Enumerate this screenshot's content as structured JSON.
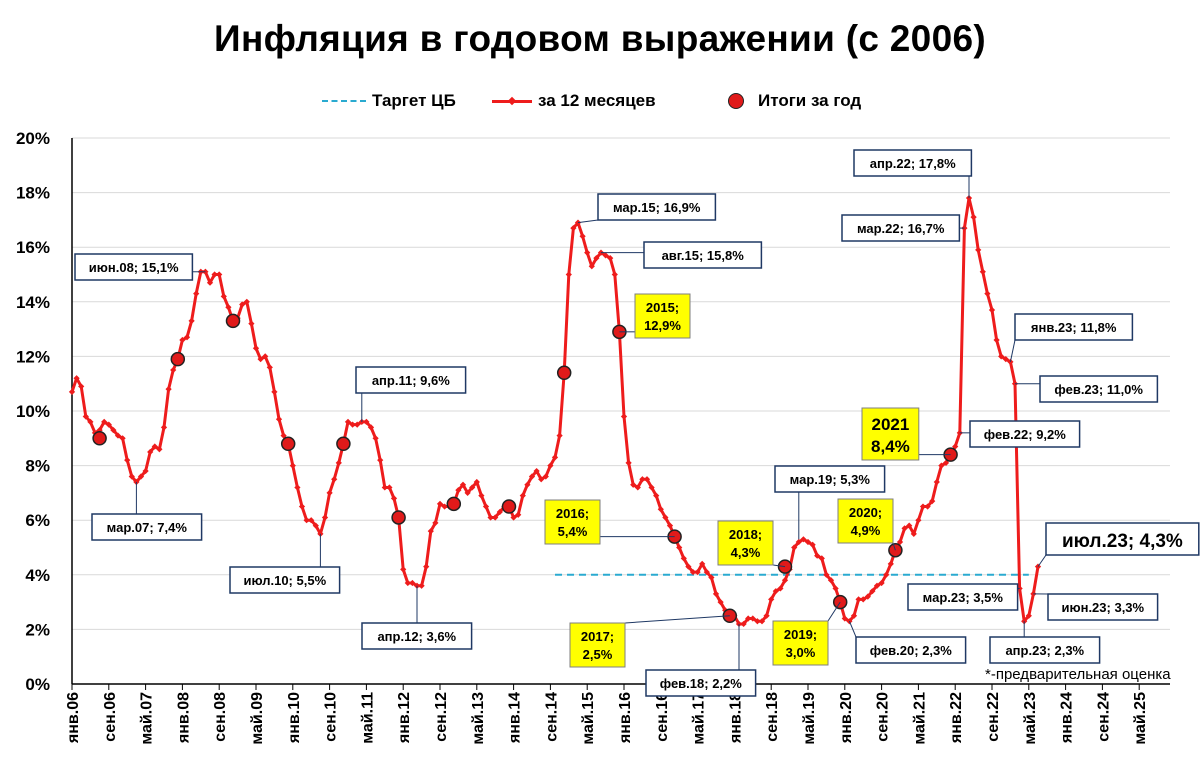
{
  "page": {
    "title": "Инфляция в годовом выражении (с 2006)",
    "note": "*-предварительная оценка"
  },
  "legend": {
    "target": "Таргет ЦБ",
    "line": "за 12 месяцев",
    "dots": "Итоги за год"
  },
  "colors": {
    "line": "#ee1c1c",
    "dot": "#e01a1a",
    "target": "#2aaad0",
    "box_border": "#1f3864",
    "year_box": "#ffff00"
  },
  "chart_data": {
    "type": "line",
    "title": "Инфляция в годовом выражении (с 2006)",
    "y_unit": "%",
    "ylim": [
      0,
      20
    ],
    "y_ticks": [
      "0%",
      "2%",
      "4%",
      "6%",
      "8%",
      "10%",
      "12%",
      "14%",
      "16%",
      "18%",
      "20%"
    ],
    "x_ticks": [
      "янв.06",
      "сен.06",
      "май.07",
      "янв.08",
      "сен.08",
      "май.09",
      "янв.10",
      "сен.10",
      "май.11",
      "янв.12",
      "сен.12",
      "май.13",
      "янв.14",
      "сен.14",
      "май.15",
      "янв.16",
      "сен.16",
      "май.17",
      "янв.18",
      "сен.18",
      "май.19",
      "янв.20",
      "сен.20",
      "май.21",
      "янв.22",
      "сен.22",
      "май.23",
      "янв.24",
      "сен.24",
      "май.25"
    ],
    "series": [
      {
        "name": "за 12 месяцев",
        "start": "янв.06",
        "values": [
          10.7,
          11.2,
          10.9,
          9.8,
          9.6,
          9.2,
          9.3,
          9.6,
          9.5,
          9.3,
          9.1,
          9.0,
          8.2,
          7.6,
          7.4,
          7.6,
          7.8,
          8.5,
          8.7,
          8.6,
          9.4,
          10.8,
          11.5,
          11.9,
          12.6,
          12.7,
          13.3,
          14.3,
          15.1,
          15.1,
          14.7,
          15.0,
          15.0,
          14.2,
          13.8,
          13.3,
          13.4,
          13.9,
          14.0,
          13.2,
          12.3,
          11.9,
          12.0,
          11.6,
          10.7,
          9.7,
          9.1,
          8.8,
          8.0,
          7.2,
          6.5,
          6.0,
          6.0,
          5.8,
          5.5,
          6.1,
          7.0,
          7.5,
          8.1,
          8.8,
          9.6,
          9.5,
          9.5,
          9.6,
          9.6,
          9.4,
          9.0,
          8.2,
          7.2,
          7.2,
          6.8,
          6.1,
          4.2,
          3.7,
          3.7,
          3.6,
          3.6,
          4.3,
          5.6,
          5.9,
          6.6,
          6.5,
          6.5,
          6.6,
          7.1,
          7.3,
          7.0,
          7.2,
          7.4,
          6.9,
          6.5,
          6.1,
          6.1,
          6.3,
          6.5,
          6.5,
          6.1,
          6.2,
          6.9,
          7.3,
          7.6,
          7.8,
          7.5,
          7.6,
          8.0,
          8.3,
          9.1,
          11.4,
          15.0,
          16.7,
          16.9,
          16.4,
          15.8,
          15.3,
          15.6,
          15.8,
          15.7,
          15.6,
          15.0,
          12.9,
          9.8,
          8.1,
          7.3,
          7.2,
          7.5,
          7.5,
          7.2,
          6.9,
          6.4,
          6.1,
          5.8,
          5.4,
          5.0,
          4.6,
          4.3,
          4.1,
          4.1,
          4.4,
          4.1,
          3.9,
          3.3,
          3.0,
          2.7,
          2.5,
          2.5,
          2.2,
          2.2,
          2.4,
          2.4,
          2.3,
          2.3,
          2.5,
          3.1,
          3.4,
          3.5,
          3.8,
          4.2,
          5.0,
          5.2,
          5.3,
          5.2,
          5.1,
          4.7,
          4.6,
          4.0,
          3.8,
          3.5,
          3.0,
          2.4,
          2.3,
          2.5,
          3.1,
          3.1,
          3.2,
          3.4,
          3.6,
          3.7,
          4.0,
          4.4,
          4.9,
          5.2,
          5.7,
          5.8,
          5.5,
          6.0,
          6.5,
          6.5,
          6.7,
          7.4,
          8.0,
          8.1,
          8.4,
          8.7,
          9.2,
          16.7,
          17.8,
          17.1,
          15.9,
          15.1,
          14.3,
          13.7,
          12.6,
          12.0,
          11.9,
          11.8,
          11.0,
          3.5,
          2.3,
          2.5,
          3.3,
          4.3
        ]
      },
      {
        "name": "Таргет ЦБ",
        "x": [
          "окт.14",
          "май.23"
        ],
        "values": [
          4.0,
          4.0
        ]
      },
      {
        "name": "Итоги за год",
        "points": [
          {
            "x": "июл.06",
            "y": 9.0
          },
          {
            "x": "дек.07",
            "y": 11.9
          },
          {
            "x": "дек.08",
            "y": 13.3
          },
          {
            "x": "дек.09",
            "y": 8.8
          },
          {
            "x": "дек.10",
            "y": 8.8
          },
          {
            "x": "дек.11",
            "y": 6.1
          },
          {
            "x": "дек.12",
            "y": 6.6
          },
          {
            "x": "дек.13",
            "y": 6.5
          },
          {
            "x": "дек.14",
            "y": 11.4
          },
          {
            "x": "дек.15",
            "y": 12.9
          },
          {
            "x": "дек.16",
            "y": 5.4
          },
          {
            "x": "дек.17",
            "y": 2.5
          },
          {
            "x": "дек.18",
            "y": 4.3
          },
          {
            "x": "дек.19",
            "y": 3.0
          },
          {
            "x": "дек.20",
            "y": 4.9
          },
          {
            "x": "дек.21",
            "y": 8.4
          }
        ]
      }
    ],
    "annotations": [
      {
        "text": "июн.08; 15,1%",
        "x": "июн.08",
        "y": 15.1,
        "style": "plain"
      },
      {
        "text": "мар.07; 7,4%",
        "x": "мар.07",
        "y": 7.4,
        "style": "plain"
      },
      {
        "text": "июл.10; 5,5%",
        "x": "июл.10",
        "y": 5.5,
        "style": "plain"
      },
      {
        "text": "апр.11; 9,6%",
        "x": "апр.11",
        "y": 9.6,
        "style": "plain"
      },
      {
        "text": "апр.12; 3,6%",
        "x": "апр.12",
        "y": 3.6,
        "style": "plain"
      },
      {
        "text": "мар.15; 16,9%",
        "x": "мар.15",
        "y": 16.9,
        "style": "plain"
      },
      {
        "text": "авг.15; 15,8%",
        "x": "авг.15",
        "y": 15.8,
        "style": "plain"
      },
      {
        "text": "фев.18; 2,2%",
        "x": "фев.18",
        "y": 2.2,
        "style": "plain"
      },
      {
        "text": "мар.19; 5,3%",
        "x": "мар.19",
        "y": 5.3,
        "style": "plain"
      },
      {
        "text": "фев.20; 2,3%",
        "x": "фев.20",
        "y": 2.3,
        "style": "plain"
      },
      {
        "text": "апр.22; 17,8%",
        "x": "апр.22",
        "y": 17.8,
        "style": "plain"
      },
      {
        "text": "мар.22; 16,7%",
        "x": "мар.22",
        "y": 16.7,
        "style": "plain"
      },
      {
        "text": "фев.22; 9,2%",
        "x": "фев.22",
        "y": 9.2,
        "style": "plain"
      },
      {
        "text": "янв.23; 11,8%",
        "x": "янв.23",
        "y": 11.8,
        "style": "plain"
      },
      {
        "text": "фев.23; 11,0%",
        "x": "фев.23",
        "y": 11.0,
        "style": "plain"
      },
      {
        "text": "мар.23; 3,5%",
        "x": "мар.23",
        "y": 3.5,
        "style": "plain"
      },
      {
        "text": "апр.23; 2,3%",
        "x": "апр.23",
        "y": 2.3,
        "style": "plain"
      },
      {
        "text": "июн.23; 3,3%",
        "x": "июн.23",
        "y": 3.3,
        "style": "plain"
      },
      {
        "text": "июл.23; 4,3%",
        "x": "июл.23",
        "y": 4.3,
        "style": "big"
      },
      {
        "lines": [
          "2015;",
          "12,9%"
        ],
        "x": "дек.15",
        "y": 12.9,
        "style": "year"
      },
      {
        "lines": [
          "2016;",
          "5,4%"
        ],
        "x": "дек.16",
        "y": 5.4,
        "style": "year"
      },
      {
        "lines": [
          "2017;",
          "2,5%"
        ],
        "x": "дек.17",
        "y": 2.5,
        "style": "year"
      },
      {
        "lines": [
          "2018;",
          "4,3%"
        ],
        "x": "дек.18",
        "y": 4.3,
        "style": "year"
      },
      {
        "lines": [
          "2019;",
          "3,0%"
        ],
        "x": "дек.19",
        "y": 3.0,
        "style": "year"
      },
      {
        "lines": [
          "2020;",
          "4,9%"
        ],
        "x": "дек.20",
        "y": 4.9,
        "style": "year"
      },
      {
        "lines": [
          "2021",
          "8,4%"
        ],
        "x": "дек.21",
        "y": 8.4,
        "style": "year-big"
      }
    ]
  }
}
